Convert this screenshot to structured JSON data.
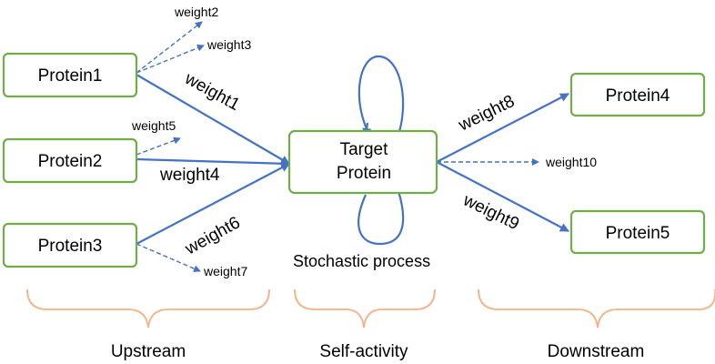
{
  "nodes": {
    "protein1": "Protein1",
    "protein2": "Protein2",
    "protein3": "Protein3",
    "target_line1": "Target",
    "target_line2": "Protein",
    "protein4": "Protein4",
    "protein5": "Protein5"
  },
  "edges": {
    "w1": "weight1",
    "w2": "weight2",
    "w3": "weight3",
    "w4": "weight4",
    "w5": "weight5",
    "w6": "weight6",
    "w7": "weight7",
    "w8": "weight8",
    "w9": "weight9",
    "w10": "weight10"
  },
  "self_loop_label": "Stochastic process",
  "groups": {
    "upstream": "Upstream",
    "self_activity": "Self-activity",
    "downstream": "Downstream"
  },
  "colors": {
    "node_border": "#70ad47",
    "arrow": "#4472c4",
    "brace": "#f4b183"
  }
}
